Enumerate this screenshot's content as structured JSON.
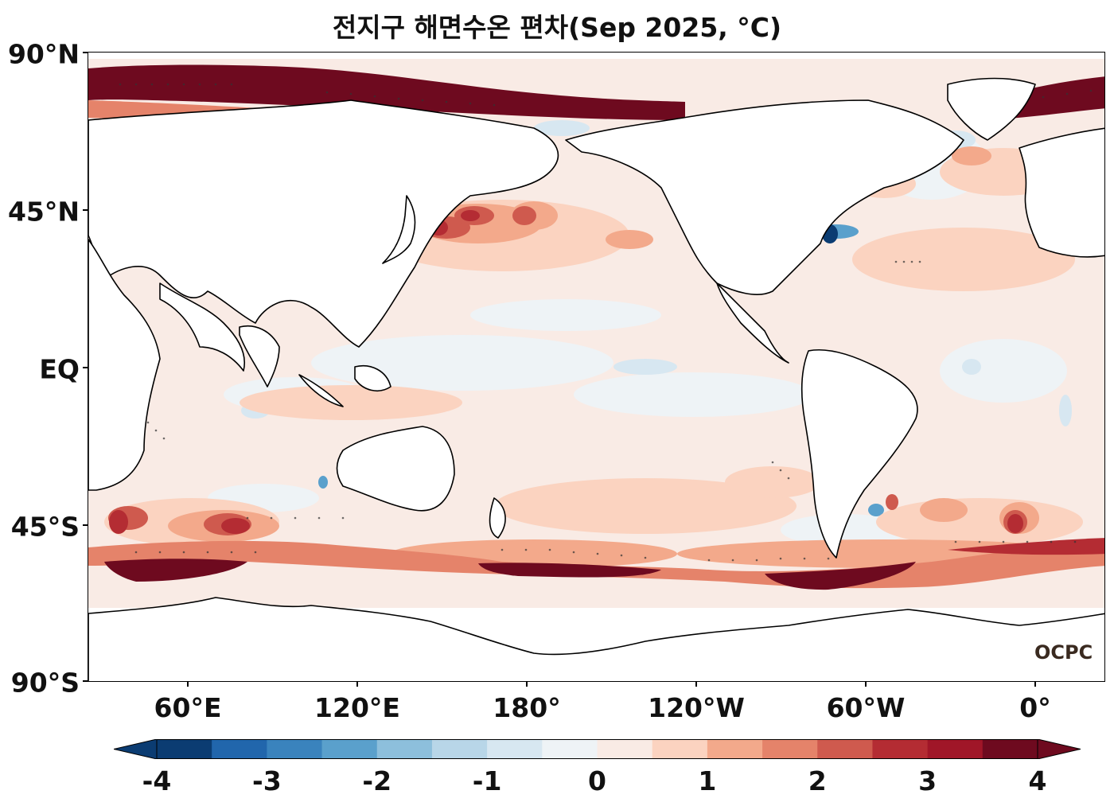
{
  "title": "전지구 해면수온 편차(Sep 2025, °C)",
  "logo": "OCPC",
  "lat_labels": [
    "90°N",
    "45°N",
    "EQ",
    "45°S",
    "90°S"
  ],
  "lon_labels": [
    "60°E",
    "120°E",
    "180°",
    "120°W",
    "60°W",
    "0°"
  ],
  "colorbar": {
    "labels": [
      "-4",
      "-3",
      "-2",
      "-1",
      "0",
      "1",
      "2",
      "3",
      "4"
    ],
    "colors": [
      "#0b3c72",
      "#2166ac",
      "#3a83bd",
      "#5aa0cc",
      "#8dbfdc",
      "#b8d6e8",
      "#d7e7f1",
      "#eef3f6",
      "#f9ebe5",
      "#fbd3c0",
      "#f3a98b",
      "#e5836a",
      "#cf5a4e",
      "#b42c33",
      "#a01628",
      "#6e0a1f"
    ]
  },
  "map": {
    "projection": "plate carrée, central longitude 24°W (lon range 24°E–336°E)",
    "variable": "sea surface temperature anomaly",
    "units": "°C",
    "stippling": "significant anomalies"
  }
}
